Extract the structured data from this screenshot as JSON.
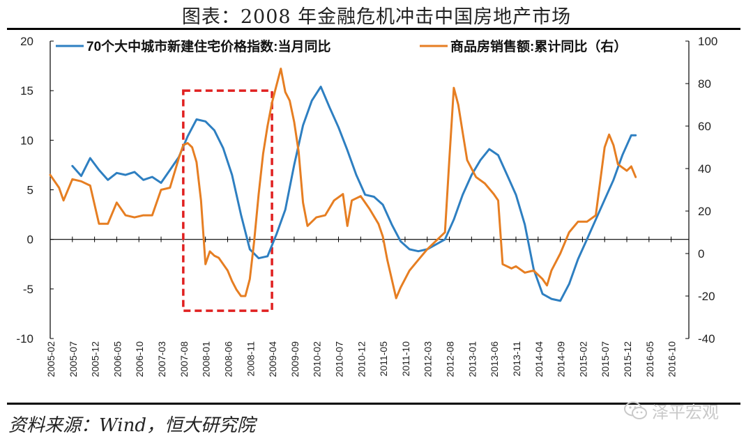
{
  "header": {
    "title": "图表：2008 年金融危机冲击中国房地产市场"
  },
  "footer": {
    "source": "资料来源：Wind，恒大研究院",
    "watermark": "泽平宏观"
  },
  "colors": {
    "series1": "#2E7FC1",
    "series2": "#E67E22",
    "highlight": "#E02020",
    "axis": "#000000"
  },
  "chart_data": {
    "type": "line",
    "title": "图表：2008 年金融危机冲击中国房地产市场",
    "legend_position": "top",
    "grid": false,
    "y_left": {
      "min": -10,
      "max": 20,
      "ticks": [
        -10,
        -5,
        0,
        5,
        10,
        15,
        20
      ]
    },
    "y_right": {
      "min": -40,
      "max": 100,
      "ticks": [
        -40,
        -20,
        0,
        20,
        40,
        60,
        80,
        100
      ]
    },
    "x_ticks": [
      "2005-02",
      "2005-07",
      "2005-12",
      "2006-05",
      "2006-10",
      "2007-03",
      "2007-08",
      "2008-01",
      "2008-06",
      "2008-11",
      "2009-04",
      "2009-09",
      "2010-02",
      "2010-07",
      "2010-12",
      "2011-05",
      "2011-10",
      "2012-03",
      "2012-08",
      "2013-01",
      "2013-06",
      "2013-11",
      "2014-04",
      "2014-09",
      "2015-02",
      "2015-07",
      "2015-12",
      "2016-05",
      "2016-10"
    ],
    "series": [
      {
        "name": "70个大中城市新建住宅价格指数:当月同比",
        "axis": "left",
        "color": "#2E7FC1",
        "points": [
          [
            "2005-07",
            7.4
          ],
          [
            "2005-09",
            6.4
          ],
          [
            "2005-11",
            8.2
          ],
          [
            "2006-01",
            7.0
          ],
          [
            "2006-03",
            6.0
          ],
          [
            "2006-05",
            6.7
          ],
          [
            "2006-07",
            6.5
          ],
          [
            "2006-09",
            6.8
          ],
          [
            "2006-11",
            6.0
          ],
          [
            "2007-01",
            6.3
          ],
          [
            "2007-03",
            5.7
          ],
          [
            "2007-05",
            7.0
          ],
          [
            "2007-07",
            8.3
          ],
          [
            "2007-09",
            10.4
          ],
          [
            "2007-11",
            12.1
          ],
          [
            "2008-01",
            11.9
          ],
          [
            "2008-03",
            11.0
          ],
          [
            "2008-05",
            9.2
          ],
          [
            "2008-07",
            6.5
          ],
          [
            "2008-09",
            2.5
          ],
          [
            "2008-11",
            -1.0
          ],
          [
            "2009-01",
            -1.9
          ],
          [
            "2009-03",
            -1.7
          ],
          [
            "2009-05",
            0.5
          ],
          [
            "2009-07",
            3.0
          ],
          [
            "2009-09",
            7.5
          ],
          [
            "2009-11",
            11.5
          ],
          [
            "2010-01",
            14.0
          ],
          [
            "2010-03",
            15.4
          ],
          [
            "2010-05",
            13.3
          ],
          [
            "2010-07",
            11.3
          ],
          [
            "2010-09",
            9.0
          ],
          [
            "2010-11",
            6.5
          ],
          [
            "2011-01",
            4.5
          ],
          [
            "2011-03",
            4.3
          ],
          [
            "2011-05",
            3.5
          ],
          [
            "2011-07",
            1.5
          ],
          [
            "2011-09",
            -0.2
          ],
          [
            "2011-11",
            -1.0
          ],
          [
            "2012-01",
            -1.2
          ],
          [
            "2012-03",
            -1.0
          ],
          [
            "2012-05",
            -0.5
          ],
          [
            "2012-07",
            0.0
          ],
          [
            "2012-09",
            2.0
          ],
          [
            "2012-11",
            4.5
          ],
          [
            "2013-01",
            6.5
          ],
          [
            "2013-03",
            8.0
          ],
          [
            "2013-05",
            9.1
          ],
          [
            "2013-07",
            8.5
          ],
          [
            "2013-09",
            6.5
          ],
          [
            "2013-11",
            4.5
          ],
          [
            "2014-01",
            1.5
          ],
          [
            "2014-03",
            -3.0
          ],
          [
            "2014-05",
            -5.5
          ],
          [
            "2014-07",
            -6.0
          ],
          [
            "2014-09",
            -6.2
          ],
          [
            "2014-11",
            -4.5
          ],
          [
            "2015-01",
            -2.0
          ],
          [
            "2015-03",
            0.0
          ],
          [
            "2015-05",
            2.0
          ],
          [
            "2015-07",
            4.0
          ],
          [
            "2015-09",
            6.0
          ],
          [
            "2015-11",
            8.5
          ],
          [
            "2016-01",
            10.5
          ],
          [
            "2016-02",
            10.5
          ]
        ]
      },
      {
        "name": "商品房销售额:累计同比（右）",
        "axis": "right",
        "color": "#E67E22",
        "points": [
          [
            "2005-02",
            37
          ],
          [
            "2005-04",
            31
          ],
          [
            "2005-05",
            25
          ],
          [
            "2005-07",
            35
          ],
          [
            "2005-09",
            34
          ],
          [
            "2005-11",
            32
          ],
          [
            "2006-01",
            14
          ],
          [
            "2006-03",
            14
          ],
          [
            "2006-05",
            24
          ],
          [
            "2006-07",
            18
          ],
          [
            "2006-09",
            17
          ],
          [
            "2006-11",
            18
          ],
          [
            "2007-01",
            18
          ],
          [
            "2007-03",
            30
          ],
          [
            "2007-05",
            31
          ],
          [
            "2007-07",
            45
          ],
          [
            "2007-08",
            51
          ],
          [
            "2007-09",
            52
          ],
          [
            "2007-10",
            50
          ],
          [
            "2007-11",
            43
          ],
          [
            "2007-12",
            25
          ],
          [
            "2008-01",
            -5
          ],
          [
            "2008-02",
            1
          ],
          [
            "2008-03",
            -1
          ],
          [
            "2008-04",
            -2
          ],
          [
            "2008-06",
            -8
          ],
          [
            "2008-07",
            -13
          ],
          [
            "2008-08",
            -17
          ],
          [
            "2008-09",
            -20
          ],
          [
            "2008-10",
            -20
          ],
          [
            "2008-11",
            -12
          ],
          [
            "2008-12",
            6
          ],
          [
            "2009-01",
            28
          ],
          [
            "2009-02",
            47
          ],
          [
            "2009-03",
            60
          ],
          [
            "2009-04",
            71
          ],
          [
            "2009-05",
            79
          ],
          [
            "2009-06",
            87
          ],
          [
            "2009-07",
            76
          ],
          [
            "2009-08",
            72
          ],
          [
            "2009-09",
            62
          ],
          [
            "2009-10",
            48
          ],
          [
            "2009-11",
            24
          ],
          [
            "2009-12",
            13
          ],
          [
            "2010-02",
            17
          ],
          [
            "2010-04",
            18
          ],
          [
            "2010-06",
            25
          ],
          [
            "2010-08",
            28
          ],
          [
            "2010-09",
            13
          ],
          [
            "2010-10",
            25
          ],
          [
            "2010-12",
            27
          ],
          [
            "2011-02",
            21
          ],
          [
            "2011-04",
            14
          ],
          [
            "2011-05",
            8
          ],
          [
            "2011-06",
            -3
          ],
          [
            "2011-08",
            -21
          ],
          [
            "2011-09",
            -16
          ],
          [
            "2011-11",
            -8
          ],
          [
            "2012-01",
            -3
          ],
          [
            "2012-03",
            2
          ],
          [
            "2012-05",
            6
          ],
          [
            "2012-07",
            10
          ],
          [
            "2012-08",
            45
          ],
          [
            "2012-09",
            78
          ],
          [
            "2012-10",
            70
          ],
          [
            "2012-11",
            57
          ],
          [
            "2012-12",
            44
          ],
          [
            "2013-02",
            36
          ],
          [
            "2013-04",
            33
          ],
          [
            "2013-06",
            28
          ],
          [
            "2013-07",
            25
          ],
          [
            "2013-08",
            -5
          ],
          [
            "2013-10",
            -7
          ],
          [
            "2013-11",
            -6
          ],
          [
            "2014-01",
            -9
          ],
          [
            "2014-03",
            -8
          ],
          [
            "2014-05",
            -12
          ],
          [
            "2014-06",
            -15
          ],
          [
            "2014-07",
            -8
          ],
          [
            "2014-09",
            0
          ],
          [
            "2014-11",
            10
          ],
          [
            "2015-01",
            15
          ],
          [
            "2015-03",
            15
          ],
          [
            "2015-05",
            18
          ],
          [
            "2015-07",
            50
          ],
          [
            "2015-08",
            56
          ],
          [
            "2015-09",
            51
          ],
          [
            "2015-10",
            42
          ],
          [
            "2015-12",
            39
          ],
          [
            "2016-01",
            41
          ],
          [
            "2016-02",
            36
          ]
        ]
      }
    ],
    "annotation": {
      "type": "dashed-box",
      "from": "2007-08",
      "to": "2009-04",
      "y_top": 15,
      "y_bottom": -7.2
    }
  }
}
